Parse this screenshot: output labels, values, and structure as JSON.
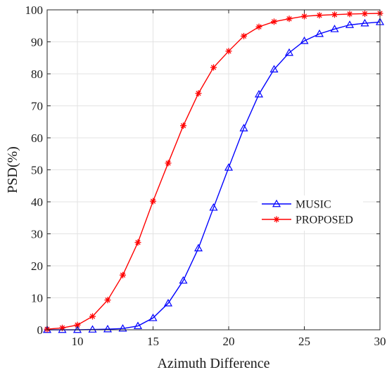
{
  "chart_data": {
    "type": "line",
    "title": "",
    "xlabel": "Azimuth Difference",
    "ylabel": "PSD(%)",
    "xlim": [
      8,
      30
    ],
    "ylim": [
      0,
      100
    ],
    "xticks": [
      10,
      15,
      20,
      25,
      30
    ],
    "yticks": [
      0,
      10,
      20,
      30,
      40,
      50,
      60,
      70,
      80,
      90,
      100
    ],
    "grid": true,
    "legend_position": "right-middle",
    "x": [
      8,
      9,
      10,
      11,
      12,
      13,
      14,
      15,
      16,
      17,
      18,
      19,
      20,
      21,
      22,
      23,
      24,
      25,
      26,
      27,
      28,
      29,
      30
    ],
    "series": [
      {
        "name": "MUSIC",
        "color": "#0000ff",
        "marker": "triangle",
        "values": [
          0,
          0,
          0,
          0.1,
          0.2,
          0.4,
          1.2,
          3.7,
          8.3,
          15.4,
          25.5,
          38.2,
          50.7,
          63.0,
          73.6,
          81.4,
          86.6,
          90.3,
          92.5,
          94.0,
          95.3,
          95.8,
          96.2
        ]
      },
      {
        "name": "PROPOSED",
        "color": "#ff0000",
        "marker": "asterisk",
        "values": [
          0.2,
          0.6,
          1.5,
          4.2,
          9.3,
          17.1,
          27.3,
          40.2,
          52.1,
          63.8,
          73.9,
          82.0,
          87.1,
          91.8,
          94.7,
          96.3,
          97.2,
          98.0,
          98.3,
          98.5,
          98.7,
          98.8,
          98.9
        ]
      }
    ]
  }
}
